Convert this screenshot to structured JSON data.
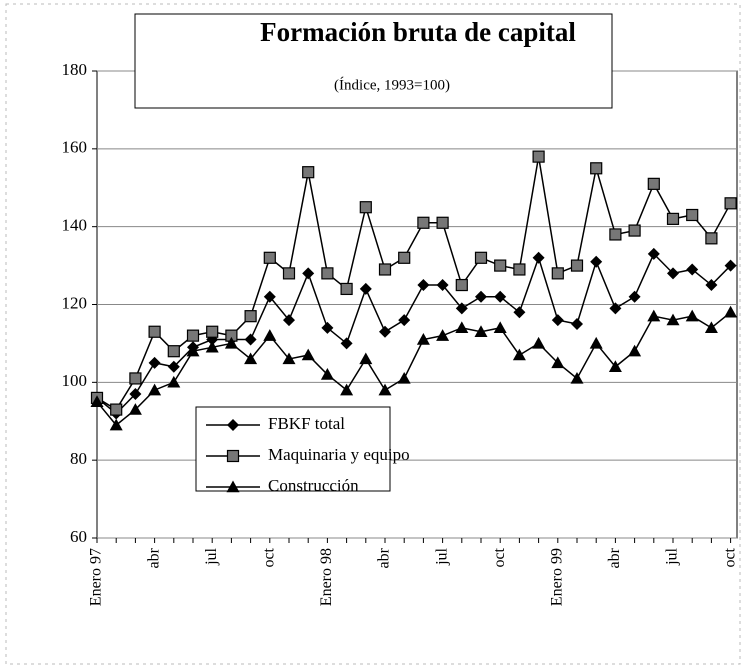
{
  "chart_data": {
    "type": "line",
    "title": "Formación bruta de capital",
    "subtitle": "(Índice, 1993=100)",
    "categories": [
      "Enero 97",
      null,
      null,
      "abr",
      null,
      null,
      "jul",
      null,
      null,
      "oct",
      null,
      null,
      "Enero 98",
      null,
      null,
      "abr",
      null,
      null,
      "jul",
      null,
      null,
      "oct",
      null,
      null,
      "Enero 99",
      null,
      null,
      "abr",
      null,
      null,
      "jul",
      null,
      null,
      "oct"
    ],
    "series": [
      {
        "name": "FBKF total",
        "color": "#000000",
        "values": [
          96,
          92,
          97,
          105,
          104,
          109,
          111,
          111,
          111,
          122,
          116,
          128,
          114,
          110,
          124,
          113,
          116,
          125,
          125,
          119,
          122,
          122,
          118,
          132,
          116,
          115,
          131,
          119,
          122,
          133,
          128,
          129,
          125,
          130
        ]
      },
      {
        "name": "Maquinaria y equipo",
        "color": "#000000",
        "values": [
          96,
          93,
          101,
          113,
          108,
          112,
          113,
          112,
          117,
          132,
          128,
          154,
          128,
          124,
          145,
          129,
          132,
          141,
          141,
          125,
          132,
          130,
          129,
          158,
          128,
          130,
          155,
          138,
          139,
          151,
          142,
          143,
          137,
          146
        ]
      },
      {
        "name": "Construcción",
        "color": "#000000",
        "values": [
          95,
          89,
          93,
          98,
          100,
          108,
          109,
          110,
          106,
          112,
          106,
          107,
          102,
          98,
          106,
          98,
          101,
          111,
          112,
          114,
          113,
          114,
          107,
          110,
          105,
          101,
          110,
          104,
          108,
          117,
          116,
          117,
          114,
          118
        ]
      }
    ],
    "ylim": [
      60,
      180
    ],
    "yticks": [
      60,
      80,
      100,
      120,
      140,
      160,
      180
    ],
    "grid": true
  }
}
